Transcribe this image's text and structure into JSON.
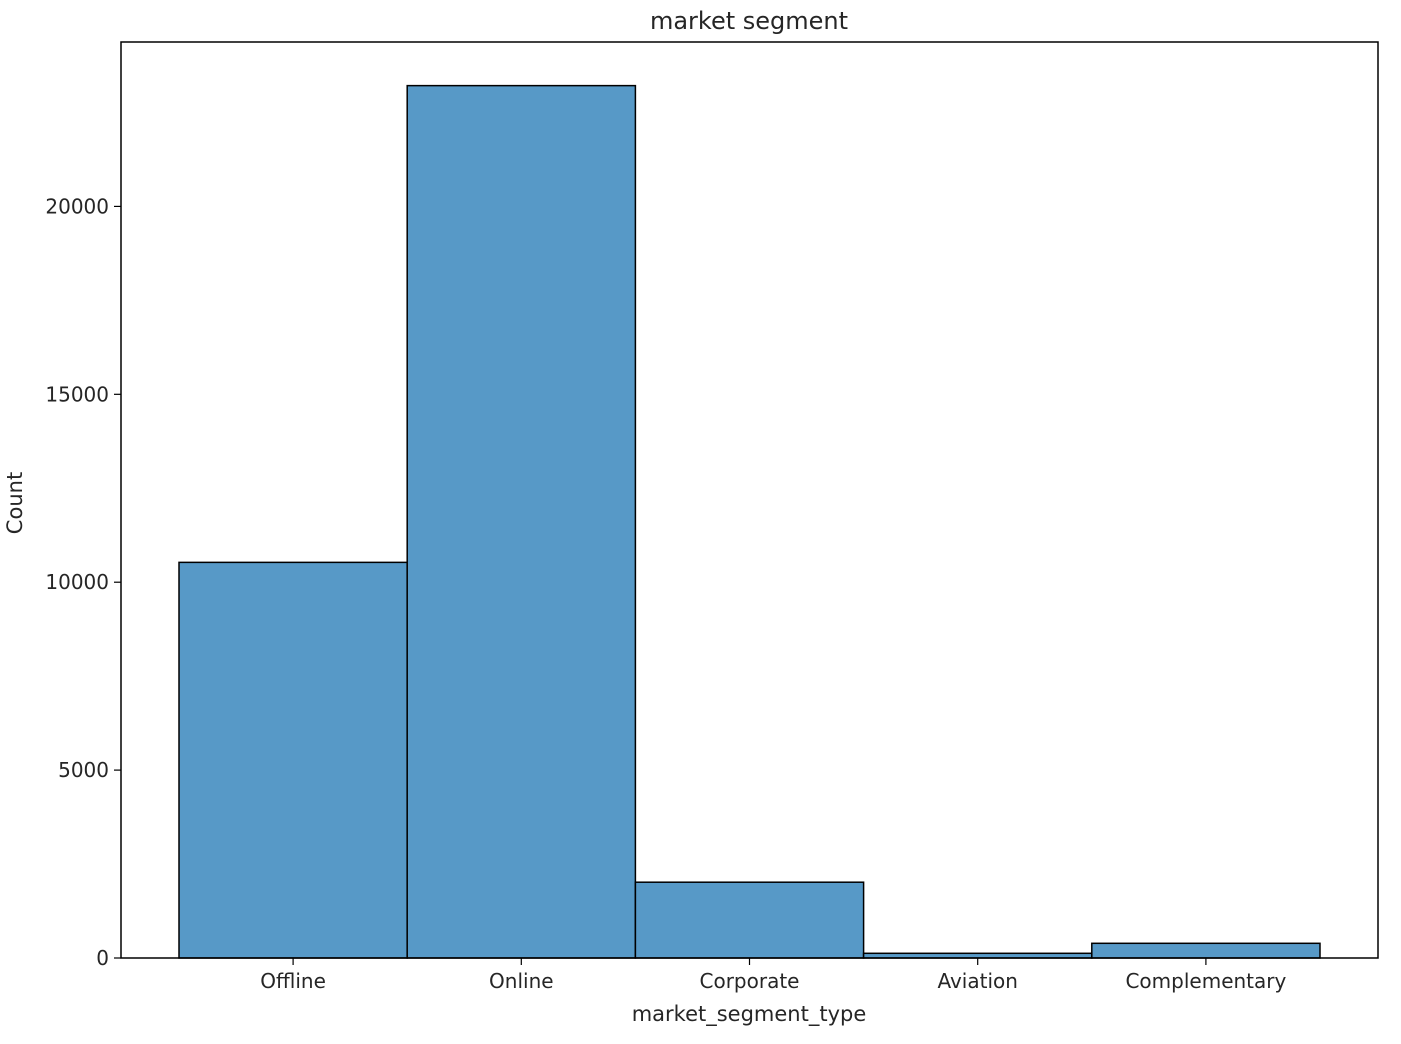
{
  "chart_data": {
    "type": "bar",
    "title": "market segment",
    "xlabel": "market_segment_type",
    "ylabel": "Count",
    "categories": [
      "Offline",
      "Online",
      "Corporate",
      "Aviation",
      "Complementary"
    ],
    "values": [
      10528,
      23214,
      2017,
      125,
      391
    ],
    "ylim": [
      0,
      24375
    ],
    "yticks": [
      0,
      5000,
      10000,
      15000,
      20000
    ],
    "grid": false,
    "bar_color": "#5799c7",
    "edge_color": "#000000"
  }
}
